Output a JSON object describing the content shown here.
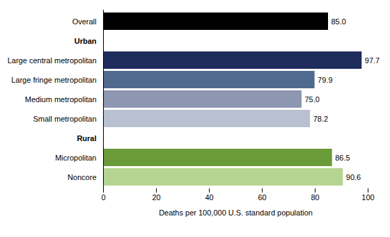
{
  "chart_data": {
    "type": "bar",
    "orientation": "horizontal",
    "categories": [
      "Overall",
      "Urban",
      "Large central metropolitan",
      "Large fringe metropolitan",
      "Medium metropolitan",
      "Small metropolitan",
      "Rural",
      "Micropolitan",
      "Noncore"
    ],
    "values": [
      85,
      null,
      97.7,
      79.9,
      75,
      78.2,
      null,
      86.5,
      90.6
    ],
    "value_labels": [
      "85.0",
      null,
      "97.7",
      "79.9",
      "75.0",
      "78.2",
      null,
      "86.5",
      "90.6"
    ],
    "colors": [
      "#000000",
      null,
      "#1f2d5c",
      "#50698f",
      "#8d97b2",
      "#b9c0d0",
      null,
      "#6b9a3a",
      "#b6d491"
    ],
    "data_labels": true,
    "x_label": "Deaths per 100,000 U.S. standard population",
    "xlim": [
      0,
      100
    ],
    "xticks": [
      0,
      20,
      40,
      60,
      80,
      100
    ],
    "grid": false
  }
}
